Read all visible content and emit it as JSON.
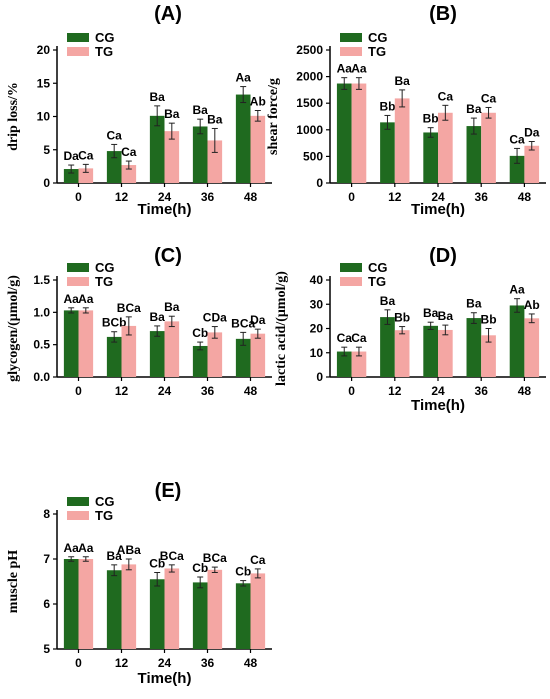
{
  "colors": {
    "CG": "#1f6a1f",
    "TG": "#f4a6a3"
  },
  "chart_data": [
    {
      "type": "bar",
      "title": "(A)",
      "xlabel": "Time(h)",
      "ylabel": "drip loss/%",
      "categories": [
        "0",
        "12",
        "24",
        "36",
        "48"
      ],
      "ylim": [
        0,
        20
      ],
      "yticks": [
        0,
        5,
        10,
        15,
        20
      ],
      "legend": "top-left",
      "series": [
        {
          "name": "CG",
          "values": [
            2.1,
            4.8,
            10.1,
            8.5,
            13.3
          ],
          "errors": [
            0.6,
            1.0,
            1.5,
            1.1,
            1.2
          ],
          "labels": [
            "Da",
            "Ca",
            "Ba",
            "Ba",
            "Aa"
          ]
        },
        {
          "name": "TG",
          "values": [
            2.2,
            2.7,
            7.8,
            6.4,
            10.1
          ],
          "errors": [
            0.6,
            0.6,
            1.2,
            1.8,
            0.8
          ],
          "labels": [
            "Ca",
            "Ca",
            "Ba",
            "Ba",
            "Ab"
          ]
        }
      ]
    },
    {
      "type": "bar",
      "title": "(B)",
      "xlabel": "Time(h)",
      "ylabel": "shear force/g",
      "categories": [
        "0",
        "12",
        "24",
        "36",
        "48"
      ],
      "ylim": [
        0,
        2500
      ],
      "yticks": [
        0,
        500,
        1000,
        1500,
        2000,
        2500
      ],
      "legend": "top-left",
      "series": [
        {
          "name": "CG",
          "values": [
            1870,
            1140,
            950,
            1070,
            510
          ],
          "errors": [
            110,
            130,
            90,
            150,
            140
          ],
          "labels": [
            "Aa",
            "Bb",
            "Bb",
            "Ba",
            "Ca"
          ]
        },
        {
          "name": "TG",
          "values": [
            1870,
            1590,
            1320,
            1320,
            700
          ],
          "errors": [
            110,
            160,
            140,
            100,
            80
          ],
          "labels": [
            "Aa",
            "Ba",
            "Ca",
            "Ca",
            "Da"
          ]
        }
      ]
    },
    {
      "type": "bar",
      "title": "(C)",
      "xlabel": "",
      "ylabel": "glycogen/(μmol/g)",
      "categories": [
        "0",
        "12",
        "24",
        "36",
        "48"
      ],
      "ylim": [
        0,
        1.5
      ],
      "yticks": [
        0.0,
        0.5,
        1.0,
        1.5
      ],
      "legend": "top-left",
      "series": [
        {
          "name": "CG",
          "values": [
            1.03,
            0.62,
            0.71,
            0.48,
            0.59
          ],
          "errors": [
            0.04,
            0.08,
            0.08,
            0.06,
            0.1
          ],
          "labels": [
            "Aa",
            "BCb",
            "Ba",
            "Cb",
            "BCa"
          ]
        },
        {
          "name": "TG",
          "values": [
            1.03,
            0.79,
            0.86,
            0.69,
            0.67
          ],
          "errors": [
            0.04,
            0.14,
            0.08,
            0.09,
            0.07
          ],
          "labels": [
            "Aa",
            "BCa",
            "Ba",
            "CDa",
            "Da"
          ]
        }
      ]
    },
    {
      "type": "bar",
      "title": "(D)",
      "xlabel": "Time(h)",
      "ylabel": "lactic acid/(μmol/g)",
      "categories": [
        "0",
        "12",
        "24",
        "36",
        "48"
      ],
      "ylim": [
        0,
        40
      ],
      "yticks": [
        0,
        10,
        20,
        30,
        40
      ],
      "legend": "top-left",
      "series": [
        {
          "name": "CG",
          "values": [
            10.5,
            24.7,
            21.1,
            24.3,
            29.5
          ],
          "errors": [
            1.8,
            3.0,
            1.5,
            2.2,
            2.8
          ],
          "labels": [
            "Ca",
            "Ba",
            "Ba",
            "Ba",
            "Aa"
          ]
        },
        {
          "name": "TG",
          "values": [
            10.5,
            19.3,
            19.4,
            17.2,
            24.2
          ],
          "errors": [
            1.8,
            1.5,
            2.0,
            2.8,
            1.8
          ],
          "labels": [
            "Ca",
            "Bb",
            "Ba",
            "Bb",
            "Ab"
          ]
        }
      ]
    },
    {
      "type": "bar",
      "title": "(E)",
      "xlabel": "Time(h)",
      "ylabel": "muscle pH",
      "categories": [
        "0",
        "12",
        "24",
        "36",
        "48"
      ],
      "ylim": [
        5,
        8
      ],
      "yticks": [
        5,
        6,
        7,
        8
      ],
      "legend": "top-left",
      "series": [
        {
          "name": "CG",
          "values": [
            7.0,
            6.75,
            6.55,
            6.48,
            6.46
          ],
          "errors": [
            0.05,
            0.12,
            0.15,
            0.12,
            0.06
          ],
          "labels": [
            "Aa",
            "Ba",
            "Cb",
            "Cb",
            "Cb"
          ]
        },
        {
          "name": "TG",
          "values": [
            7.0,
            6.88,
            6.79,
            6.76,
            6.68
          ],
          "errors": [
            0.05,
            0.12,
            0.08,
            0.06,
            0.1
          ],
          "labels": [
            "Aa",
            "ABa",
            "BCa",
            "BCa",
            "Ca"
          ]
        }
      ]
    }
  ]
}
